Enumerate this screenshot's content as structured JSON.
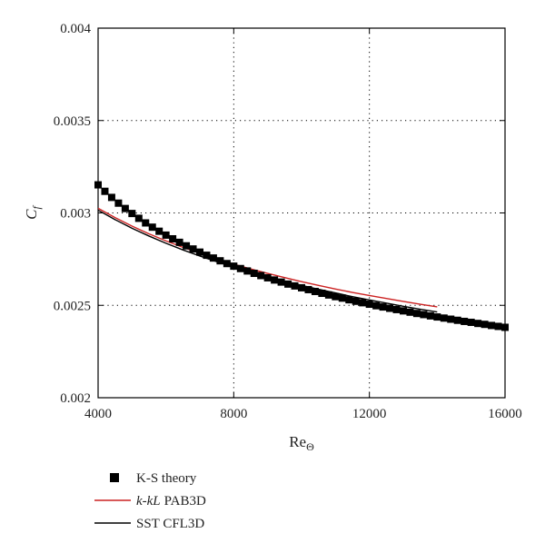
{
  "chart_data": {
    "type": "line",
    "xlabel": "Re",
    "xlabel_sub": "Θ",
    "ylabel": "C",
    "ylabel_sub": "f",
    "xlim": [
      4000,
      16000
    ],
    "ylim": [
      0.002,
      0.004
    ],
    "x_ticks": [
      4000,
      8000,
      12000,
      16000
    ],
    "x_tick_labels": [
      "4000",
      "8000",
      "12000",
      "16000"
    ],
    "y_ticks": [
      0.002,
      0.0025,
      0.003,
      0.0035,
      0.004
    ],
    "y_tick_labels": [
      "0.002",
      "0.0025",
      "0.003",
      "0.0035",
      "0.004"
    ],
    "grid": "dotted",
    "legend_position": "bottom",
    "series": [
      {
        "name": "K-S theory",
        "style": "square-markers",
        "color": "#000000",
        "x": [
          4000,
          4200,
          4400,
          4600,
          4800,
          5000,
          5200,
          5400,
          5600,
          5800,
          6000,
          6200,
          6400,
          6600,
          6800,
          7000,
          7200,
          7400,
          7600,
          7800,
          8000,
          8200,
          8400,
          8600,
          8800,
          9000,
          9200,
          9400,
          9600,
          9800,
          10000,
          10200,
          10400,
          10600,
          10800,
          11000,
          11200,
          11400,
          11600,
          11800,
          12000,
          12200,
          12400,
          12600,
          12800,
          13000,
          13200,
          13400,
          13600,
          13800,
          14000,
          14200,
          14400,
          14600,
          14800,
          15000,
          15200,
          15400,
          15600,
          15800,
          16000
        ],
        "y": [
          0.003152,
          0.003117,
          0.003084,
          0.003053,
          0.003024,
          0.002997,
          0.002971,
          0.002946,
          0.002923,
          0.002901,
          0.00288,
          0.00286,
          0.002841,
          0.002822,
          0.002805,
          0.002788,
          0.002771,
          0.002756,
          0.002741,
          0.002726,
          0.002712,
          0.002699,
          0.002686,
          0.002673,
          0.002661,
          0.002649,
          0.002637,
          0.002626,
          0.002615,
          0.002605,
          0.002595,
          0.002585,
          0.002575,
          0.002565,
          0.002556,
          0.002547,
          0.002539,
          0.00253,
          0.002522,
          0.002514,
          0.002506,
          0.002498,
          0.002491,
          0.002484,
          0.002477,
          0.00247,
          0.002463,
          0.002456,
          0.00245,
          0.002443,
          0.002437,
          0.002431,
          0.002425,
          0.002419,
          0.002413,
          0.002408,
          0.002402,
          0.002397,
          0.002391,
          0.002386,
          0.002381
        ]
      },
      {
        "name": "PAB3D",
        "name_italic": "k-kL",
        "style": "line",
        "color": "#cc2222",
        "x": [
          4000,
          4500,
          5000,
          5500,
          6000,
          6500,
          7000,
          7500,
          8000,
          8500,
          9000,
          9500,
          10000,
          10500,
          11000,
          11500,
          12000,
          12500,
          13000,
          13500,
          14000
        ],
        "y": [
          0.003025,
          0.002975,
          0.002929,
          0.002887,
          0.002849,
          0.002814,
          0.002782,
          0.002751,
          0.002723,
          0.002697,
          0.002673,
          0.00265,
          0.002628,
          0.002608,
          0.002588,
          0.00257,
          0.002553,
          0.002537,
          0.002521,
          0.002506,
          0.002492
        ]
      },
      {
        "name": "SST CFL3D",
        "style": "line",
        "color": "#000000",
        "x": [
          4000,
          4500,
          5000,
          5500,
          6000,
          6500,
          7000,
          7500,
          8000,
          8500,
          9000,
          9500,
          10000,
          10500,
          11000,
          11500,
          12000,
          12500,
          13000,
          13500,
          14000
        ],
        "y": [
          0.003015,
          0.002964,
          0.002917,
          0.002875,
          0.002836,
          0.0028,
          0.002767,
          0.002736,
          0.002707,
          0.00268,
          0.002655,
          0.002631,
          0.002608,
          0.002587,
          0.002567,
          0.002547,
          0.002529,
          0.002512,
          0.002495,
          0.002479,
          0.002464
        ]
      }
    ]
  }
}
